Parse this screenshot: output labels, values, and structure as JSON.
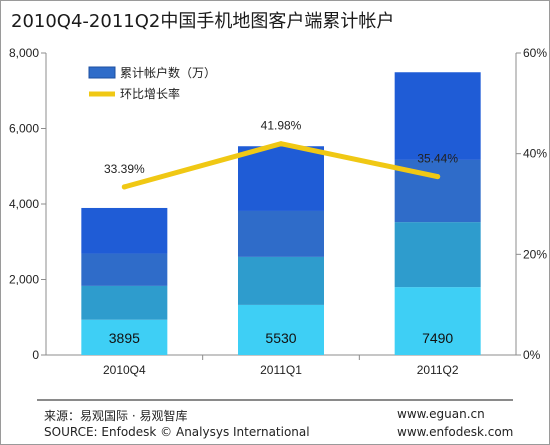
{
  "chart_data": {
    "type": "bar+line",
    "title": "2010Q4-2011Q2中国手机地图客户端累计帐户",
    "categories": [
      "2010Q4",
      "2011Q1",
      "2011Q2"
    ],
    "series": [
      {
        "name": "累计帐户数（万）",
        "type": "stacked-bar",
        "values": [
          3895,
          5530,
          7490
        ],
        "axis": "left"
      },
      {
        "name": "环比增长率",
        "type": "line",
        "values": [
          33.39,
          41.98,
          35.44
        ],
        "axis": "right"
      }
    ],
    "data_labels": {
      "bars": [
        "3895",
        "5530",
        "7490"
      ],
      "line": [
        "33.39%",
        "41.98%",
        "35.44%"
      ]
    },
    "y_left": {
      "min": 0,
      "max": 8000,
      "ticks": [
        "0",
        "2,000",
        "4,000",
        "6,000",
        "8,000"
      ]
    },
    "y_right": {
      "min": 0,
      "max": 60,
      "ticks": [
        "0%",
        "20%",
        "40%",
        "60%"
      ]
    },
    "legend_position": "top-left",
    "colors": {
      "stack": [
        "#3ecff5",
        "#2e9ccd",
        "#2f6cc9",
        "#1f5cd6"
      ],
      "line": "#f0c814"
    }
  },
  "footer": {
    "source_cn": "来源：易观国际 · 易观智库",
    "source_en": "SOURCE: Enfodesk © Analysys International",
    "site1": "www.eguan.cn",
    "site2": "www.enfodesk.com"
  }
}
